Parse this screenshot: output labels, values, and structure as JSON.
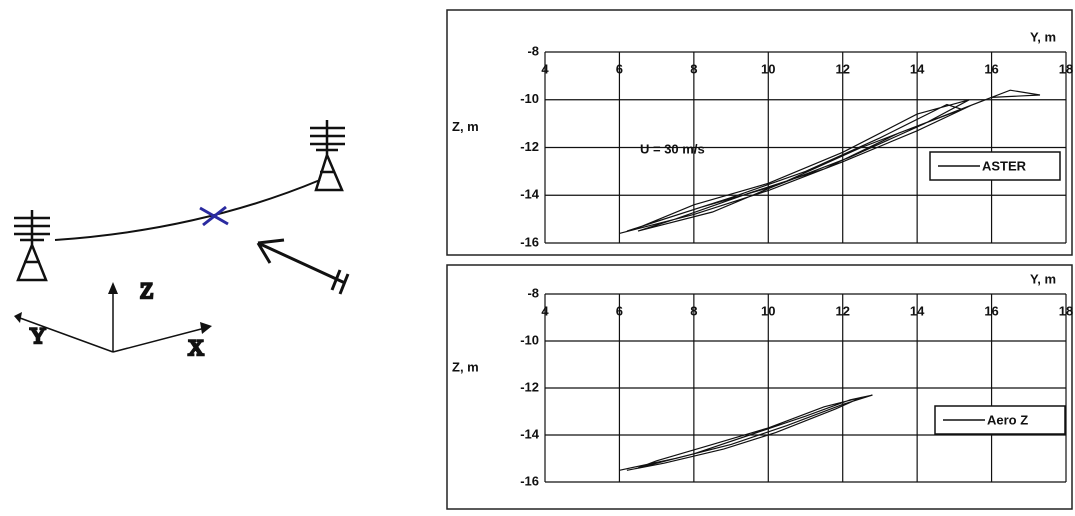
{
  "diagram": {
    "axis_labels": {
      "z": "Z",
      "y": "Y",
      "x": "X"
    }
  },
  "chart_data": [
    {
      "type": "line",
      "x_label": "Y, m",
      "y_label": "Z, m",
      "annotation": "U = 30 m/s",
      "x": [
        6.0,
        8,
        10,
        12,
        14,
        15.5,
        16.5,
        17.3,
        16,
        14.5,
        12.5,
        10.5,
        8.5,
        6.5,
        7.5,
        9.5,
        11.5,
        13.5,
        15.2,
        14.8,
        13,
        11,
        9,
        7,
        6.2,
        8.2,
        10.2,
        12.2,
        14.2,
        15.4,
        14,
        12,
        10,
        8,
        6.6
      ],
      "series": [
        {
          "name": "ASTER",
          "color": "#111111",
          "values": [
            -15.6,
            -14.8,
            -13.8,
            -12.6,
            -11.3,
            -10.2,
            -9.6,
            -9.8,
            -9.9,
            -10.8,
            -12.0,
            -13.4,
            -14.7,
            -15.5,
            -15.0,
            -13.9,
            -12.9,
            -11.4,
            -10.4,
            -10.2,
            -11.6,
            -13.0,
            -14.1,
            -15.1,
            -15.5,
            -14.5,
            -13.6,
            -12.4,
            -11.0,
            -10.0,
            -10.6,
            -12.2,
            -13.5,
            -14.4,
            -15.3
          ]
        }
      ],
      "xlim": [
        4,
        18
      ],
      "xticks": [
        4,
        6,
        8,
        10,
        12,
        14,
        16,
        18
      ],
      "ylim": [
        -16,
        -8
      ],
      "yticks": [
        -16,
        -14,
        -12,
        -10,
        -8
      ],
      "grid": true,
      "legend": "right"
    },
    {
      "type": "line",
      "x_label": "Y, m",
      "y_label": "Z, m",
      "x": [
        6.0,
        7.5,
        9,
        10.5,
        12,
        12.8,
        12.2,
        11,
        9.5,
        8,
        6.5,
        7,
        8.5,
        10,
        11.5,
        12.5,
        11.8,
        10.2,
        8.8,
        7.2,
        6.2
      ],
      "series": [
        {
          "name": "Aero Z",
          "color": "#111111",
          "values": [
            -15.5,
            -15.0,
            -14.4,
            -13.6,
            -12.7,
            -12.3,
            -12.5,
            -13.2,
            -14.0,
            -14.8,
            -15.4,
            -15.1,
            -14.4,
            -13.7,
            -12.8,
            -12.4,
            -12.9,
            -13.9,
            -14.6,
            -15.2,
            -15.5
          ]
        }
      ],
      "xlim": [
        4,
        18
      ],
      "xticks": [
        4,
        6,
        8,
        10,
        12,
        14,
        16,
        18
      ],
      "ylim": [
        -16,
        -8
      ],
      "yticks": [
        -16,
        -14,
        -12,
        -10,
        -8
      ],
      "grid": true,
      "legend": "right"
    }
  ]
}
